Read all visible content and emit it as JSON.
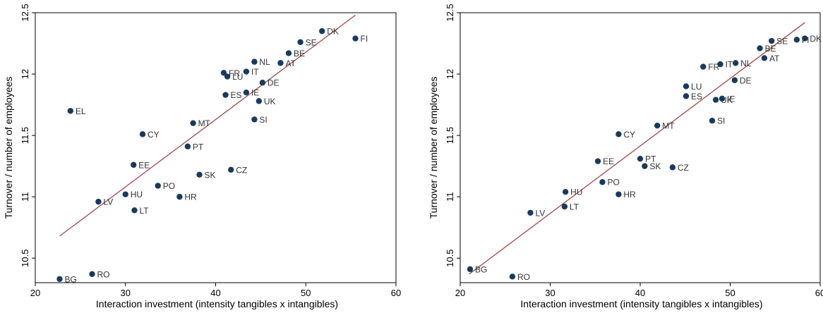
{
  "chart_data": [
    {
      "type": "scatter",
      "xlabel": "Interaction investment (intensity tangibles x intangibles)",
      "ylabel": "Turnover / number of employees",
      "xlim": [
        20,
        60
      ],
      "ylim": [
        10.3,
        12.5
      ],
      "xticks": [
        20,
        30,
        40,
        50,
        60
      ],
      "yticks": [
        10.5,
        11,
        11.5,
        12,
        12.5
      ],
      "grid": false,
      "colors": {
        "point": "#1a3a5c",
        "fit": "#a0494b"
      },
      "fit_line": {
        "x": [
          22.7,
          55.5
        ],
        "y": [
          10.68,
          12.48
        ]
      },
      "points": [
        {
          "label": "BG",
          "x": 22.7,
          "y": 10.33
        },
        {
          "label": "RO",
          "x": 26.3,
          "y": 10.37
        },
        {
          "label": "EL",
          "x": 23.9,
          "y": 11.7
        },
        {
          "label": "LV",
          "x": 27.0,
          "y": 10.96
        },
        {
          "label": "HU",
          "x": 30.0,
          "y": 11.02
        },
        {
          "label": "LT",
          "x": 31.0,
          "y": 10.89
        },
        {
          "label": "EE",
          "x": 30.9,
          "y": 11.26
        },
        {
          "label": "CY",
          "x": 31.9,
          "y": 11.51
        },
        {
          "label": "PO",
          "x": 33.6,
          "y": 11.09
        },
        {
          "label": "HR",
          "x": 36.0,
          "y": 11.0
        },
        {
          "label": "PT",
          "x": 36.9,
          "y": 11.41
        },
        {
          "label": "MT",
          "x": 37.5,
          "y": 11.6
        },
        {
          "label": "SK",
          "x": 38.2,
          "y": 11.18
        },
        {
          "label": "CZ",
          "x": 41.7,
          "y": 11.22
        },
        {
          "label": "FR",
          "x": 40.9,
          "y": 12.01
        },
        {
          "label": "LU",
          "x": 41.3,
          "y": 11.98
        },
        {
          "label": "ES",
          "x": 41.1,
          "y": 11.83
        },
        {
          "label": "IT",
          "x": 43.4,
          "y": 12.02
        },
        {
          "label": "NL",
          "x": 44.3,
          "y": 12.1
        },
        {
          "label": "IE",
          "x": 43.4,
          "y": 11.85
        },
        {
          "label": "DE",
          "x": 45.2,
          "y": 11.93
        },
        {
          "label": "UK",
          "x": 44.8,
          "y": 11.78
        },
        {
          "label": "SI",
          "x": 44.3,
          "y": 11.63
        },
        {
          "label": "AT",
          "x": 47.2,
          "y": 12.09
        },
        {
          "label": "BE",
          "x": 48.1,
          "y": 12.17
        },
        {
          "label": "SE",
          "x": 49.4,
          "y": 12.26
        },
        {
          "label": "DK",
          "x": 51.8,
          "y": 12.35
        },
        {
          "label": "FI",
          "x": 55.5,
          "y": 12.29
        }
      ]
    },
    {
      "type": "scatter",
      "xlabel": "Interaction investment (intensity tangibles x intangibles)",
      "ylabel": "Turnover / number of employees",
      "xlim": [
        20,
        60
      ],
      "ylim": [
        10.3,
        12.5
      ],
      "xticks": [
        20,
        30,
        40,
        50,
        60
      ],
      "yticks": [
        10.5,
        11,
        11.5,
        12,
        12.5
      ],
      "grid": false,
      "colors": {
        "point": "#1a3a5c",
        "fit": "#a0494b"
      },
      "fit_line": {
        "x": [
          21.0,
          58.3
        ],
        "y": [
          10.37,
          12.42
        ]
      },
      "points": [
        {
          "label": "BG",
          "x": 21.1,
          "y": 10.41
        },
        {
          "label": "RO",
          "x": 25.8,
          "y": 10.35
        },
        {
          "label": "LV",
          "x": 27.8,
          "y": 10.87
        },
        {
          "label": "LT",
          "x": 31.6,
          "y": 10.92
        },
        {
          "label": "HU",
          "x": 31.7,
          "y": 11.04
        },
        {
          "label": "PO",
          "x": 35.8,
          "y": 11.12
        },
        {
          "label": "HR",
          "x": 37.6,
          "y": 11.02
        },
        {
          "label": "EE",
          "x": 35.3,
          "y": 11.29
        },
        {
          "label": "PT",
          "x": 40.0,
          "y": 11.31
        },
        {
          "label": "SK",
          "x": 40.5,
          "y": 11.25
        },
        {
          "label": "CZ",
          "x": 43.6,
          "y": 11.24
        },
        {
          "label": "CY",
          "x": 37.6,
          "y": 11.51
        },
        {
          "label": "MT",
          "x": 41.9,
          "y": 11.58
        },
        {
          "label": "SI",
          "x": 48.0,
          "y": 11.62
        },
        {
          "label": "LU",
          "x": 45.1,
          "y": 11.9
        },
        {
          "label": "ES",
          "x": 45.1,
          "y": 11.82
        },
        {
          "label": "UK",
          "x": 48.4,
          "y": 11.79
        },
        {
          "label": "IE",
          "x": 49.1,
          "y": 11.8
        },
        {
          "label": "DE",
          "x": 50.5,
          "y": 11.95
        },
        {
          "label": "FR",
          "x": 47.0,
          "y": 12.06
        },
        {
          "label": "IT",
          "x": 48.9,
          "y": 12.08
        },
        {
          "label": "NL",
          "x": 50.6,
          "y": 12.09
        },
        {
          "label": "AT",
          "x": 53.8,
          "y": 12.13
        },
        {
          "label": "BE",
          "x": 53.3,
          "y": 12.21
        },
        {
          "label": "SE",
          "x": 54.6,
          "y": 12.27
        },
        {
          "label": "FI",
          "x": 57.4,
          "y": 12.28
        },
        {
          "label": "DK",
          "x": 58.3,
          "y": 12.29
        }
      ]
    }
  ]
}
